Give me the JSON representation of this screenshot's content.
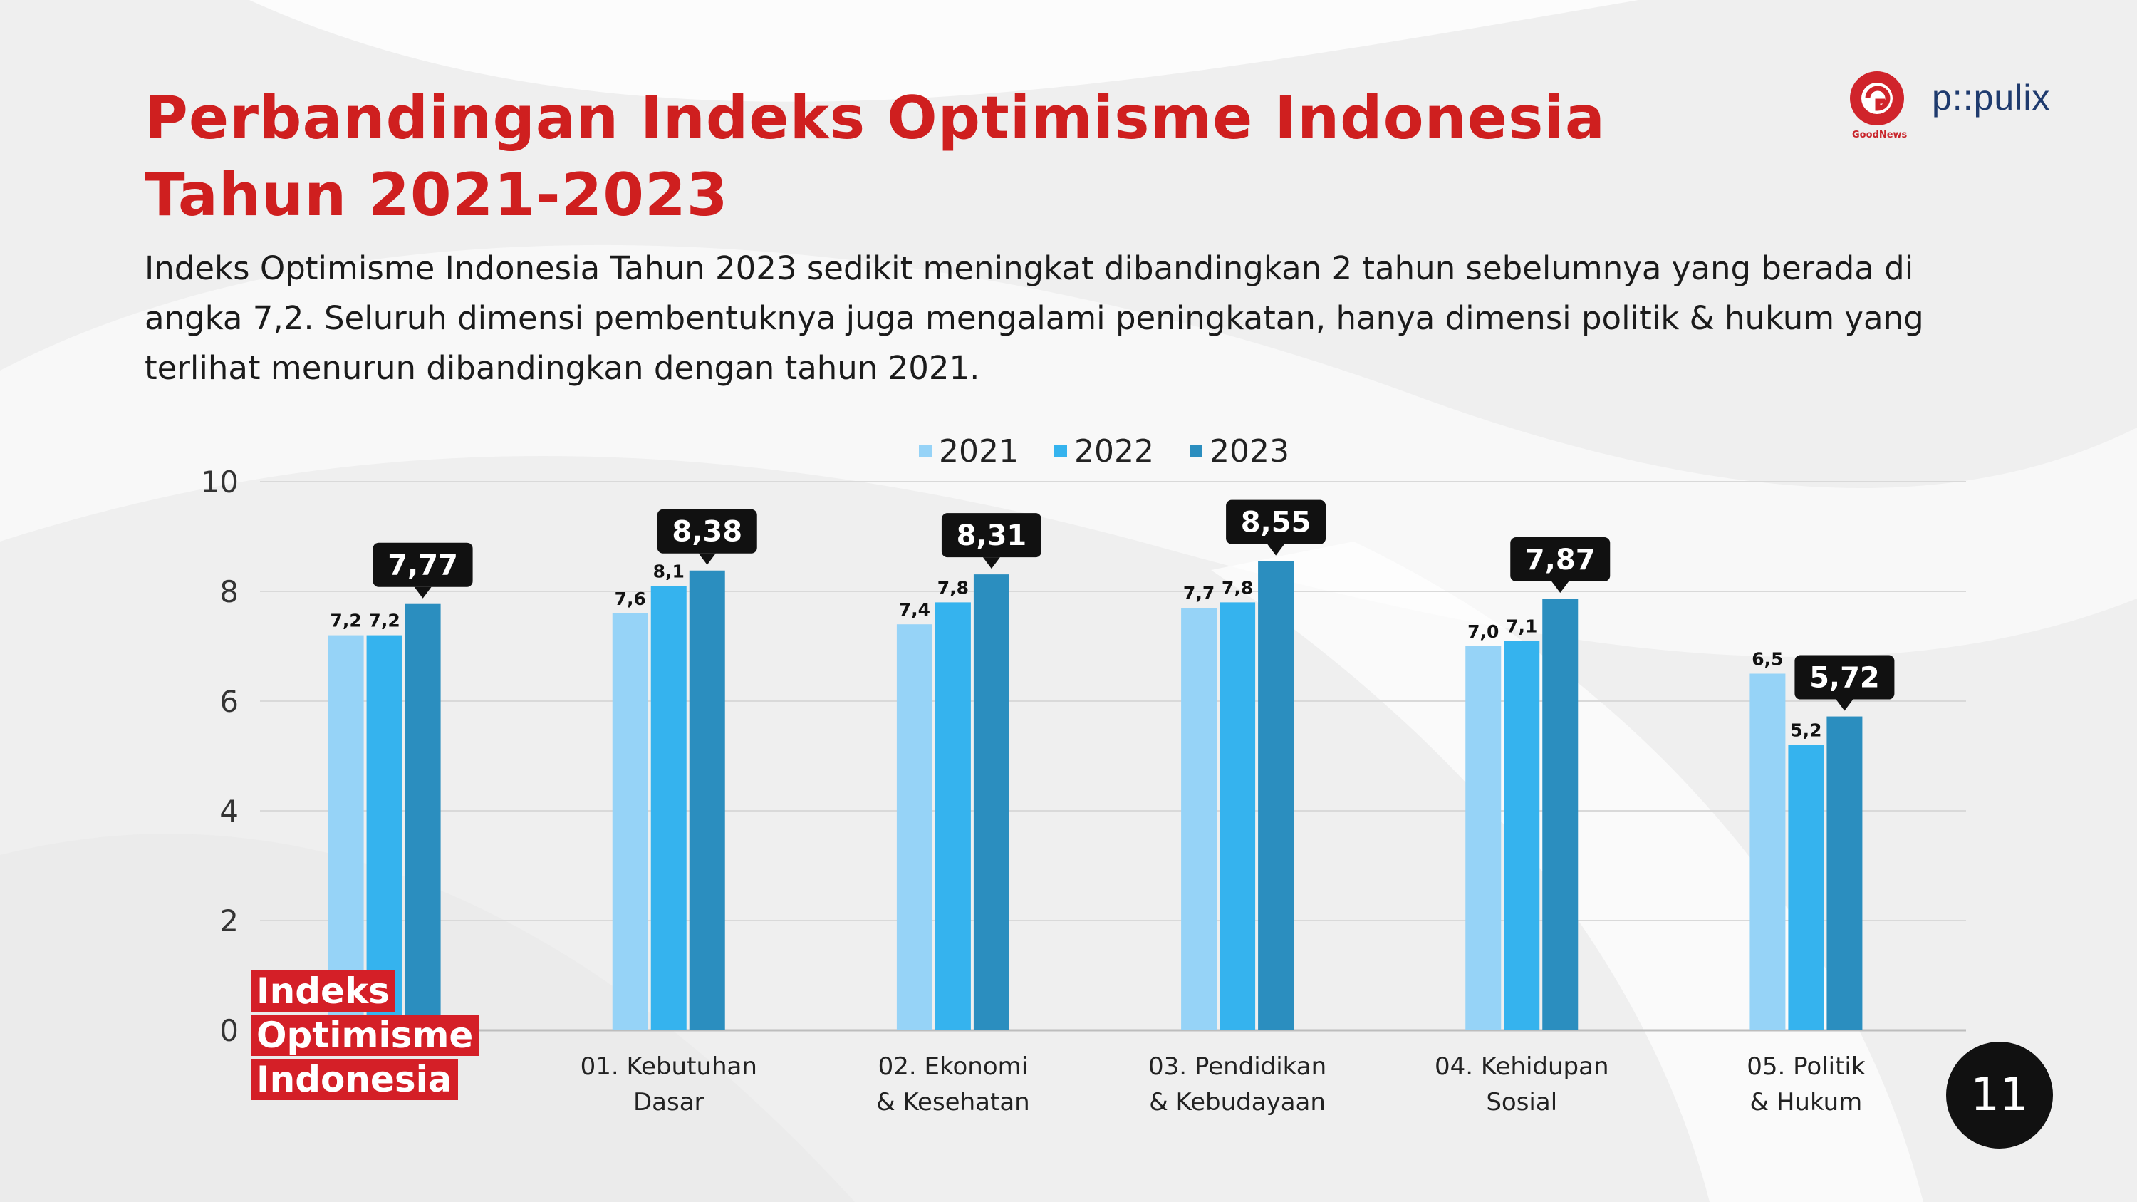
{
  "header": {
    "title_line1": "Perbandingan Indeks Optimisme Indonesia",
    "title_line2": "Tahun 2021-2023",
    "description_line1": "Indeks Optimisme Indonesia Tahun 2023 sedikit meningkat dibandingkan 2 tahun sebelumnya yang berada di",
    "description_line2": "angka 7,2. Seluruh dimensi pembentuknya juga mengalami peningkatan, hanya dimensi politik & hukum yang",
    "description_line3": "terlihat menurun dibandingkan dengan tahun 2021."
  },
  "logos": {
    "goodnews_label": "GoodNews",
    "populix_label": "p::pulix"
  },
  "brand_block": {
    "line1": "Indeks",
    "line2": "Optimisme",
    "line3": "Indonesia"
  },
  "page_number": "11",
  "colors": {
    "2021": "#96d3f7",
    "2022": "#35b3ee",
    "2023": "#2b8ebf",
    "title": "#cf1f1f",
    "brand": "#d41f27"
  },
  "chart_data": {
    "type": "bar",
    "categories": [
      [
        "Indeks Optimisme Indonesia"
      ],
      [
        "01. Kebutuhan",
        "Dasar"
      ],
      [
        "02. Ekonomi",
        "& Kesehatan"
      ],
      [
        "03. Pendidikan",
        "& Kebudayaan"
      ],
      [
        "04. Kehidupan",
        "Sosial"
      ],
      [
        "05. Politik",
        "& Hukum"
      ]
    ],
    "series": [
      {
        "name": "2021",
        "values": [
          7.2,
          7.6,
          7.4,
          7.7,
          7.0,
          6.5
        ],
        "labels": [
          "7,2",
          "7,6",
          "7,4",
          "7,7",
          "7,0",
          "6,5"
        ]
      },
      {
        "name": "2022",
        "values": [
          7.2,
          8.1,
          7.8,
          7.8,
          7.1,
          5.2
        ],
        "labels": [
          "7,2",
          "8,1",
          "7,8",
          "7,8",
          "7,1",
          "5,2"
        ]
      },
      {
        "name": "2023",
        "values": [
          7.77,
          8.38,
          8.31,
          8.55,
          7.87,
          5.72
        ],
        "labels": [
          "7,77",
          "8,38",
          "8,31",
          "8,55",
          "7,87",
          "5,72"
        ]
      }
    ],
    "ylim": [
      0,
      10
    ],
    "yticks": [
      0,
      2,
      4,
      6,
      8,
      10
    ],
    "grid": true,
    "legend_position": "top-center"
  }
}
